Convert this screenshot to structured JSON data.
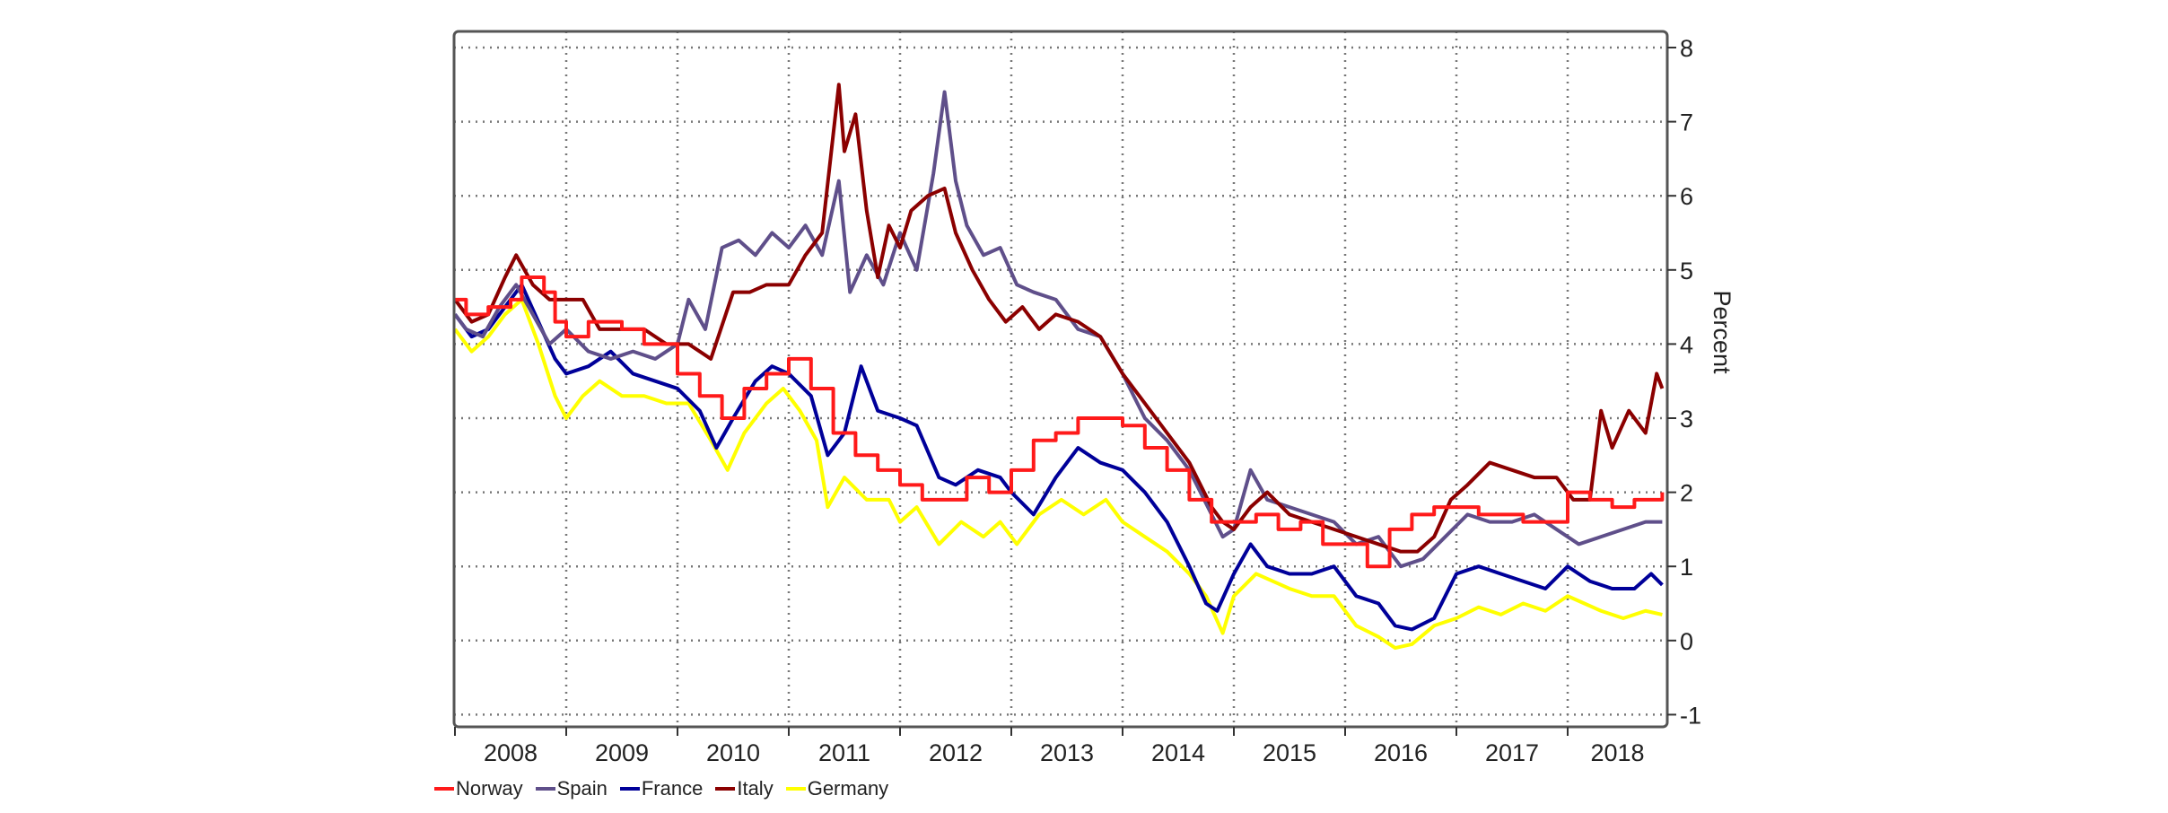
{
  "chart_data": {
    "type": "line",
    "title": "",
    "xlabel": "",
    "ylabel": "Percent",
    "ylim": [
      -1,
      8
    ],
    "yticks": [
      8,
      7,
      6,
      5,
      4,
      3,
      2,
      1,
      0,
      -1
    ],
    "xticks": [
      "2008",
      "2009",
      "2010",
      "2011",
      "2012",
      "2013",
      "2014",
      "2015",
      "2016",
      "2017",
      "2018"
    ],
    "xrange": [
      2008.0,
      2018.9
    ],
    "grid": true,
    "legend_position": "bottom-left",
    "series": [
      {
        "name": "Norway",
        "color": "#ff1a1a",
        "step": true,
        "x": [
          2008.0,
          2008.1,
          2008.3,
          2008.5,
          2008.6,
          2008.8,
          2008.9,
          2009.0,
          2009.2,
          2009.5,
          2009.7,
          2009.9,
          2010.0,
          2010.2,
          2010.4,
          2010.6,
          2010.8,
          2011.0,
          2011.2,
          2011.4,
          2011.6,
          2011.8,
          2012.0,
          2012.2,
          2012.4,
          2012.6,
          2012.8,
          2013.0,
          2013.2,
          2013.4,
          2013.6,
          2013.8,
          2014.0,
          2014.2,
          2014.4,
          2014.6,
          2014.8,
          2015.0,
          2015.2,
          2015.4,
          2015.6,
          2015.8,
          2016.0,
          2016.2,
          2016.4,
          2016.6,
          2016.8,
          2017.0,
          2017.2,
          2017.4,
          2017.6,
          2017.8,
          2018.0,
          2018.2,
          2018.4,
          2018.6,
          2018.85
        ],
        "y": [
          4.6,
          4.4,
          4.5,
          4.6,
          4.9,
          4.7,
          4.3,
          4.1,
          4.3,
          4.2,
          4.0,
          4.0,
          3.6,
          3.3,
          3.0,
          3.4,
          3.6,
          3.8,
          3.4,
          2.8,
          2.5,
          2.3,
          2.1,
          1.9,
          1.9,
          2.2,
          2.0,
          2.3,
          2.7,
          2.8,
          3.0,
          3.0,
          2.9,
          2.6,
          2.3,
          1.9,
          1.6,
          1.6,
          1.7,
          1.5,
          1.6,
          1.3,
          1.3,
          1.0,
          1.5,
          1.7,
          1.8,
          1.8,
          1.7,
          1.7,
          1.6,
          1.6,
          2.0,
          1.9,
          1.8,
          1.9,
          2.0
        ]
      },
      {
        "name": "Spain",
        "color": "#5f4f8a",
        "step": false,
        "x": [
          2008.0,
          2008.1,
          2008.25,
          2008.4,
          2008.55,
          2008.7,
          2008.85,
          2009.0,
          2009.2,
          2009.4,
          2009.6,
          2009.8,
          2010.0,
          2010.1,
          2010.25,
          2010.4,
          2010.55,
          2010.7,
          2010.85,
          2011.0,
          2011.15,
          2011.3,
          2011.45,
          2011.55,
          2011.7,
          2011.85,
          2012.0,
          2012.15,
          2012.3,
          2012.4,
          2012.5,
          2012.6,
          2012.75,
          2012.9,
          2013.05,
          2013.2,
          2013.4,
          2013.6,
          2013.8,
          2014.0,
          2014.2,
          2014.4,
          2014.6,
          2014.8,
          2014.9,
          2015.0,
          2015.15,
          2015.3,
          2015.5,
          2015.7,
          2015.9,
          2016.1,
          2016.3,
          2016.5,
          2016.7,
          2016.9,
          2017.1,
          2017.3,
          2017.5,
          2017.7,
          2017.9,
          2018.1,
          2018.3,
          2018.5,
          2018.7,
          2018.85
        ],
        "y": [
          4.4,
          4.2,
          4.1,
          4.5,
          4.8,
          4.4,
          4.0,
          4.2,
          3.9,
          3.8,
          3.9,
          3.8,
          4.0,
          4.6,
          4.2,
          5.3,
          5.4,
          5.2,
          5.5,
          5.3,
          5.6,
          5.2,
          6.2,
          4.7,
          5.2,
          4.8,
          5.5,
          5.0,
          6.3,
          7.4,
          6.2,
          5.6,
          5.2,
          5.3,
          4.8,
          4.7,
          4.6,
          4.2,
          4.1,
          3.6,
          3.0,
          2.7,
          2.3,
          1.7,
          1.4,
          1.5,
          2.3,
          1.9,
          1.8,
          1.7,
          1.6,
          1.3,
          1.4,
          1.0,
          1.1,
          1.4,
          1.7,
          1.6,
          1.6,
          1.7,
          1.5,
          1.3,
          1.4,
          1.5,
          1.6,
          1.6
        ]
      },
      {
        "name": "France",
        "color": "#000099",
        "step": false,
        "x": [
          2008.0,
          2008.15,
          2008.3,
          2008.45,
          2008.6,
          2008.75,
          2008.9,
          2009.0,
          2009.2,
          2009.4,
          2009.6,
          2009.8,
          2010.0,
          2010.2,
          2010.35,
          2010.5,
          2010.7,
          2010.85,
          2011.0,
          2011.2,
          2011.35,
          2011.5,
          2011.65,
          2011.8,
          2012.0,
          2012.15,
          2012.35,
          2012.5,
          2012.7,
          2012.9,
          2013.0,
          2013.2,
          2013.4,
          2013.6,
          2013.8,
          2014.0,
          2014.2,
          2014.4,
          2014.6,
          2014.75,
          2014.85,
          2015.0,
          2015.15,
          2015.3,
          2015.5,
          2015.7,
          2015.9,
          2016.1,
          2016.3,
          2016.45,
          2016.6,
          2016.8,
          2017.0,
          2017.2,
          2017.4,
          2017.6,
          2017.8,
          2018.0,
          2018.2,
          2018.4,
          2018.6,
          2018.75,
          2018.85
        ],
        "y": [
          4.4,
          4.1,
          4.2,
          4.5,
          4.8,
          4.3,
          3.8,
          3.6,
          3.7,
          3.9,
          3.6,
          3.5,
          3.4,
          3.1,
          2.6,
          3.0,
          3.5,
          3.7,
          3.6,
          3.3,
          2.5,
          2.8,
          3.7,
          3.1,
          3.0,
          2.9,
          2.2,
          2.1,
          2.3,
          2.2,
          2.0,
          1.7,
          2.2,
          2.6,
          2.4,
          2.3,
          2.0,
          1.6,
          1.0,
          0.5,
          0.4,
          0.9,
          1.3,
          1.0,
          0.9,
          0.9,
          1.0,
          0.6,
          0.5,
          0.2,
          0.15,
          0.3,
          0.9,
          1.0,
          0.9,
          0.8,
          0.7,
          1.0,
          0.8,
          0.7,
          0.7,
          0.9,
          0.75
        ]
      },
      {
        "name": "Italy",
        "color": "#8b0000",
        "step": false,
        "x": [
          2008.0,
          2008.15,
          2008.3,
          2008.45,
          2008.55,
          2008.7,
          2008.85,
          2009.0,
          2009.15,
          2009.3,
          2009.5,
          2009.7,
          2009.9,
          2010.1,
          2010.3,
          2010.5,
          2010.65,
          2010.8,
          2011.0,
          2011.15,
          2011.3,
          2011.45,
          2011.5,
          2011.6,
          2011.7,
          2011.8,
          2011.9,
          2012.0,
          2012.1,
          2012.25,
          2012.4,
          2012.5,
          2012.65,
          2012.8,
          2012.95,
          2013.1,
          2013.25,
          2013.4,
          2013.6,
          2013.8,
          2014.0,
          2014.2,
          2014.4,
          2014.6,
          2014.8,
          2014.9,
          2015.0,
          2015.15,
          2015.3,
          2015.5,
          2015.7,
          2015.9,
          2016.1,
          2016.3,
          2016.5,
          2016.65,
          2016.8,
          2016.95,
          2017.1,
          2017.3,
          2017.5,
          2017.7,
          2017.9,
          2018.05,
          2018.2,
          2018.3,
          2018.4,
          2018.55,
          2018.7,
          2018.8,
          2018.85
        ],
        "y": [
          4.6,
          4.3,
          4.4,
          4.9,
          5.2,
          4.8,
          4.6,
          4.6,
          4.6,
          4.2,
          4.2,
          4.2,
          4.0,
          4.0,
          3.8,
          4.7,
          4.7,
          4.8,
          4.8,
          5.2,
          5.5,
          7.5,
          6.6,
          7.1,
          5.8,
          4.9,
          5.6,
          5.3,
          5.8,
          6.0,
          6.1,
          5.5,
          5.0,
          4.6,
          4.3,
          4.5,
          4.2,
          4.4,
          4.3,
          4.1,
          3.6,
          3.2,
          2.8,
          2.4,
          1.8,
          1.6,
          1.5,
          1.8,
          2.0,
          1.7,
          1.6,
          1.5,
          1.4,
          1.3,
          1.2,
          1.2,
          1.4,
          1.9,
          2.1,
          2.4,
          2.3,
          2.2,
          2.2,
          1.9,
          1.9,
          3.1,
          2.6,
          3.1,
          2.8,
          3.6,
          3.4
        ]
      },
      {
        "name": "Germany",
        "color": "#ffff00",
        "step": false,
        "x": [
          2008.0,
          2008.15,
          2008.3,
          2008.45,
          2008.6,
          2008.75,
          2008.9,
          2009.0,
          2009.15,
          2009.3,
          2009.5,
          2009.7,
          2009.9,
          2010.1,
          2010.3,
          2010.45,
          2010.6,
          2010.8,
          2010.95,
          2011.1,
          2011.25,
          2011.35,
          2011.5,
          2011.7,
          2011.9,
          2012.0,
          2012.15,
          2012.35,
          2012.55,
          2012.75,
          2012.9,
          2013.05,
          2013.25,
          2013.45,
          2013.65,
          2013.85,
          2014.0,
          2014.2,
          2014.4,
          2014.6,
          2014.75,
          2014.9,
          2015.0,
          2015.2,
          2015.35,
          2015.5,
          2015.7,
          2015.9,
          2016.1,
          2016.3,
          2016.45,
          2016.6,
          2016.8,
          2017.0,
          2017.2,
          2017.4,
          2017.6,
          2017.8,
          2018.0,
          2018.15,
          2018.3,
          2018.5,
          2018.7,
          2018.85
        ],
        "y": [
          4.2,
          3.9,
          4.1,
          4.4,
          4.6,
          4.0,
          3.3,
          3.0,
          3.3,
          3.5,
          3.3,
          3.3,
          3.2,
          3.2,
          2.7,
          2.3,
          2.8,
          3.2,
          3.4,
          3.1,
          2.7,
          1.8,
          2.2,
          1.9,
          1.9,
          1.6,
          1.8,
          1.3,
          1.6,
          1.4,
          1.6,
          1.3,
          1.7,
          1.9,
          1.7,
          1.9,
          1.6,
          1.4,
          1.2,
          0.9,
          0.6,
          0.1,
          0.6,
          0.9,
          0.8,
          0.7,
          0.6,
          0.6,
          0.2,
          0.05,
          -0.1,
          -0.05,
          0.2,
          0.3,
          0.45,
          0.35,
          0.5,
          0.4,
          0.6,
          0.5,
          0.4,
          0.3,
          0.4,
          0.35
        ]
      }
    ]
  },
  "legend": {
    "items": [
      {
        "label": "Norway",
        "color": "#ff1a1a"
      },
      {
        "label": "Spain",
        "color": "#5f4f8a"
      },
      {
        "label": "France",
        "color": "#000099"
      },
      {
        "label": "Italy",
        "color": "#8b0000"
      },
      {
        "label": "Germany",
        "color": "#ffff00"
      }
    ]
  },
  "axis": {
    "y_label": "Percent"
  }
}
